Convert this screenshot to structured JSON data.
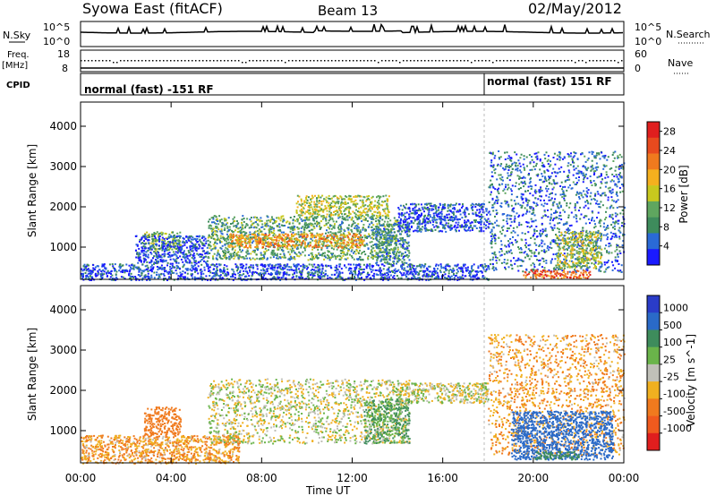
{
  "header": {
    "title_left": "Syowa East (fitACF)",
    "title_center": "Beam 13",
    "title_right": "02/May/2012"
  },
  "panels": {
    "nsky": {
      "label": "N.Sky",
      "tick_top": "10^5",
      "tick_bottom": "10^0",
      "right_label": "N.Search",
      "right_tick_top": "10^5",
      "right_tick_bottom": "10^0"
    },
    "freq": {
      "label1": "Freq.",
      "label2": "[MHz]",
      "tick_top": "18",
      "tick_bottom": "8",
      "right_label": "Nave",
      "right_tick_top": "60",
      "right_tick_bottom": "0"
    },
    "cpid": {
      "label": "CPID",
      "mode_1": "normal (fast) -151 RF",
      "mode_2": "normal (fast) 151 RF"
    }
  },
  "colors": {
    "power_scale": [
      "#1a1aff",
      "#2a6ad6",
      "#3e8c5c",
      "#5fa65f",
      "#c8c81e",
      "#f5b01e",
      "#f07a1e",
      "#e84a1e",
      "#e01e1e"
    ],
    "velocity_scale": [
      "#2a3cc8",
      "#2a6ac8",
      "#3e8c5c",
      "#6ab44a",
      "#c0c0b8",
      "#f0b020",
      "#f07a1e",
      "#f05a1e",
      "#e01e1e"
    ]
  },
  "chart_data": [
    {
      "type": "heatmap",
      "name": "Power",
      "ylabel": "Slant Range [km]",
      "xlabel": "Time UT",
      "xticks": [
        "00:00",
        "04:00",
        "08:00",
        "12:00",
        "16:00",
        "20:00",
        "00:00"
      ],
      "yticks": [
        "1000",
        "2000",
        "3000",
        "4000"
      ],
      "ylim": [
        200,
        4600
      ],
      "xlim_hours": [
        0,
        24
      ],
      "colorbar": {
        "label": "Power [dB]",
        "ticks": [
          "4",
          "8",
          "12",
          "16",
          "20",
          "24",
          "28"
        ],
        "range": [
          0,
          30
        ]
      },
      "regions": [
        {
          "t0": 2.8,
          "t1": 4.4,
          "r0": 900,
          "r1": 1400,
          "value": 12
        },
        {
          "t0": 2.4,
          "t1": 5.6,
          "r0": 600,
          "r1": 1300,
          "value": 4
        },
        {
          "t0": 5.6,
          "t1": 14.0,
          "r0": 700,
          "r1": 1800,
          "value": 10
        },
        {
          "t0": 6.5,
          "t1": 12.5,
          "r0": 1000,
          "r1": 1350,
          "value": 20
        },
        {
          "t0": 9.5,
          "t1": 13.6,
          "r0": 1800,
          "r1": 2300,
          "value": 14
        },
        {
          "t0": 13.0,
          "t1": 14.5,
          "r0": 600,
          "r1": 1600,
          "value": 8
        },
        {
          "t0": 14.0,
          "t1": 18.0,
          "r0": 1400,
          "r1": 2100,
          "value": 4
        },
        {
          "t0": 0.0,
          "t1": 18.0,
          "r0": 200,
          "r1": 600,
          "value": 4
        },
        {
          "t0": 18.0,
          "t1": 24.0,
          "r0": 400,
          "r1": 3400,
          "value": 6
        },
        {
          "t0": 19.5,
          "t1": 22.5,
          "r0": 250,
          "r1": 450,
          "value": 24
        },
        {
          "t0": 21.0,
          "t1": 23.0,
          "r0": 500,
          "r1": 1400,
          "value": 14
        }
      ]
    },
    {
      "type": "heatmap",
      "name": "Velocity",
      "ylabel": "Slant Range [km]",
      "xlabel": "Time UT",
      "xticks": [
        "00:00",
        "04:00",
        "08:00",
        "12:00",
        "16:00",
        "20:00",
        "00:00"
      ],
      "yticks": [
        "1000",
        "2000",
        "3000",
        "4000"
      ],
      "ylim": [
        200,
        4600
      ],
      "xlim_hours": [
        0,
        24
      ],
      "colorbar": {
        "label": "Velocity [m s^-1]",
        "ticks": [
          "1000",
          "500",
          "100",
          "25",
          "-25",
          "-100",
          "-500",
          "-1000"
        ]
      },
      "regions": [
        {
          "t0": 2.8,
          "t1": 4.4,
          "r0": 900,
          "r1": 1600,
          "value": -300
        },
        {
          "t0": 0.0,
          "t1": 7.0,
          "r0": 200,
          "r1": 900,
          "value": -100
        },
        {
          "t0": 5.6,
          "t1": 14.5,
          "r0": 700,
          "r1": 2300,
          "value": 0
        },
        {
          "t0": 12.5,
          "t1": 14.5,
          "r0": 700,
          "r1": 1800,
          "value": 100
        },
        {
          "t0": 14.0,
          "t1": 18.0,
          "r0": 1700,
          "r1": 2200,
          "value": 0
        },
        {
          "t0": 18.0,
          "t1": 24.0,
          "r0": 400,
          "r1": 3400,
          "value": -100
        },
        {
          "t0": 19.0,
          "t1": 23.5,
          "r0": 300,
          "r1": 1500,
          "value": 600
        },
        {
          "t0": 20.0,
          "t1": 22.0,
          "r0": 300,
          "r1": 500,
          "value": 200
        }
      ]
    }
  ]
}
